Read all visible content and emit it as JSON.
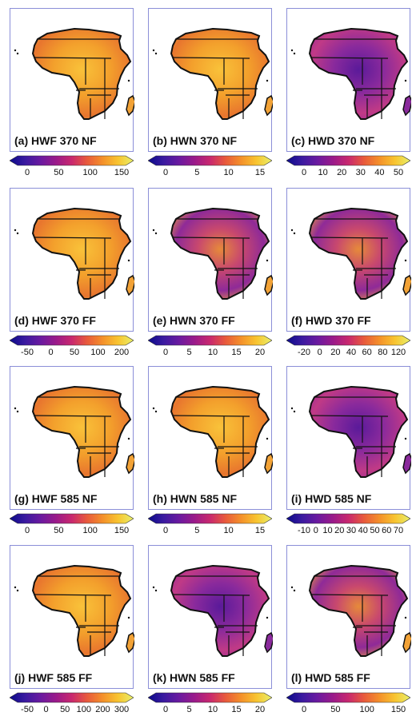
{
  "chart_data": [
    {
      "type": "heatmap",
      "label": "(a) HWF 370 NF",
      "palette": "yellow-dominant",
      "ticks": [
        "0",
        "50",
        "100",
        "150"
      ]
    },
    {
      "type": "heatmap",
      "label": "(b) HWN 370 NF",
      "palette": "yellow-dominant",
      "ticks": [
        "0",
        "5",
        "10",
        "15"
      ]
    },
    {
      "type": "heatmap",
      "label": "(c) HWD 370 NF",
      "palette": "purple-dominant",
      "ticks": [
        "0",
        "10",
        "20",
        "30",
        "40",
        "50"
      ]
    },
    {
      "type": "heatmap",
      "label": "(d) HWF 370 FF",
      "palette": "yellow-dominant",
      "ticks": [
        "-50",
        "0",
        "50",
        "100",
        "200"
      ]
    },
    {
      "type": "heatmap",
      "label": "(e) HWN 370 FF",
      "palette": "mixed",
      "ticks": [
        "0",
        "5",
        "10",
        "15",
        "20"
      ]
    },
    {
      "type": "heatmap",
      "label": "(f) HWD 370 FF",
      "palette": "mixed",
      "ticks": [
        "-20",
        "0",
        "20",
        "40",
        "60",
        "80",
        "120"
      ]
    },
    {
      "type": "heatmap",
      "label": "(g) HWF 585 NF",
      "palette": "yellow-dominant",
      "ticks": [
        "0",
        "50",
        "100",
        "150"
      ]
    },
    {
      "type": "heatmap",
      "label": "(h) HWN 585 NF",
      "palette": "yellow-dominant",
      "ticks": [
        "0",
        "5",
        "10",
        "15"
      ]
    },
    {
      "type": "heatmap",
      "label": "(i) HWD 585 NF",
      "palette": "purple-dominant",
      "ticks": [
        "-10",
        "0",
        "10",
        "20",
        "30",
        "40",
        "50",
        "60",
        "70"
      ]
    },
    {
      "type": "heatmap",
      "label": "(j) HWF 585 FF",
      "palette": "yellow-dominant",
      "ticks": [
        "-50",
        "0",
        "50",
        "100",
        "200",
        "300"
      ]
    },
    {
      "type": "heatmap",
      "label": "(k) HWN 585 FF",
      "palette": "purple-dominant",
      "ticks": [
        "0",
        "5",
        "10",
        "15",
        "20"
      ]
    },
    {
      "type": "heatmap",
      "label": "(l) HWD 585 FF",
      "palette": "mixed",
      "ticks": [
        "0",
        "50",
        "100",
        "150"
      ]
    }
  ],
  "colors": {
    "colorbar": [
      "#0a0a8a",
      "#3a1aa0",
      "#6a1aa0",
      "#9a1a8a",
      "#c8286e",
      "#e85a3c",
      "#f4902a",
      "#f8c430",
      "#e8f06a"
    ],
    "frame": "#8b8fd8",
    "outline": "#111111"
  }
}
